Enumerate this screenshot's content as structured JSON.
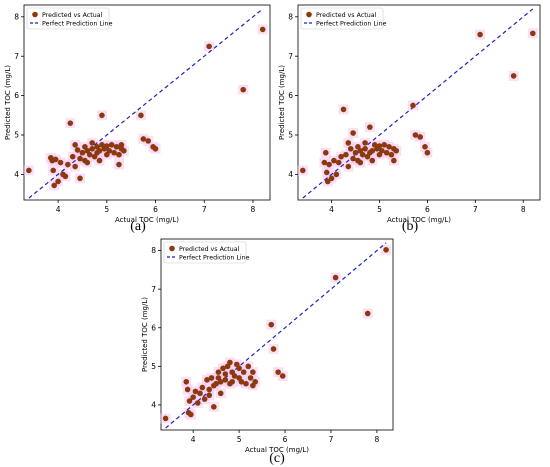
{
  "chart_data": [
    {
      "panel": "(a)",
      "type": "scatter",
      "xlabel": "Actual TOC (mg/L)",
      "ylabel": "Predicted TOC (mg/L)",
      "xlim": [
        3.3,
        8.35
      ],
      "ylim": [
        3.35,
        8.3
      ],
      "xticks": [
        4,
        5,
        6,
        7,
        8
      ],
      "yticks": [
        4,
        5,
        6,
        7,
        8
      ],
      "grid": false,
      "legend_position": "top-left",
      "series": [
        {
          "name": "Predicted vs Actual",
          "marker": "circle",
          "color": "#8b3a0e",
          "points": [
            [
              3.4,
              4.1
            ],
            [
              3.85,
              4.42
            ],
            [
              3.88,
              4.35
            ],
            [
              3.9,
              4.1
            ],
            [
              3.92,
              3.72
            ],
            [
              3.95,
              4.38
            ],
            [
              4.0,
              3.82
            ],
            [
              4.05,
              4.3
            ],
            [
              4.1,
              4.0
            ],
            [
              4.15,
              3.95
            ],
            [
              4.2,
              4.25
            ],
            [
              4.25,
              5.3
            ],
            [
              4.3,
              4.45
            ],
            [
              4.35,
              4.2
            ],
            [
              4.35,
              4.75
            ],
            [
              4.4,
              4.62
            ],
            [
              4.45,
              3.9
            ],
            [
              4.45,
              4.4
            ],
            [
              4.5,
              4.55
            ],
            [
              4.55,
              4.35
            ],
            [
              4.55,
              4.7
            ],
            [
              4.6,
              4.6
            ],
            [
              4.6,
              4.3
            ],
            [
              4.65,
              4.5
            ],
            [
              4.7,
              4.65
            ],
            [
              4.7,
              4.8
            ],
            [
              4.75,
              4.45
            ],
            [
              4.8,
              4.55
            ],
            [
              4.8,
              4.7
            ],
            [
              4.85,
              4.6
            ],
            [
              4.85,
              4.35
            ],
            [
              4.9,
              4.75
            ],
            [
              4.9,
              5.5
            ],
            [
              4.95,
              4.65
            ],
            [
              5.0,
              4.5
            ],
            [
              5.0,
              4.72
            ],
            [
              5.05,
              4.6
            ],
            [
              5.1,
              4.75
            ],
            [
              5.15,
              4.55
            ],
            [
              5.2,
              4.7
            ],
            [
              5.25,
              4.5
            ],
            [
              5.25,
              4.25
            ],
            [
              5.3,
              4.65
            ],
            [
              5.3,
              4.75
            ],
            [
              5.35,
              4.6
            ],
            [
              5.7,
              5.5
            ],
            [
              5.75,
              4.9
            ],
            [
              5.85,
              4.85
            ],
            [
              5.95,
              4.7
            ],
            [
              6.0,
              4.65
            ],
            [
              7.1,
              7.25
            ],
            [
              7.8,
              6.15
            ],
            [
              8.2,
              7.68
            ]
          ]
        },
        {
          "name": "Perfect Prediction Line",
          "style": "dashed",
          "color": "#1f1fbf",
          "points": [
            [
              3.4,
              3.4
            ],
            [
              8.2,
              8.2
            ]
          ]
        }
      ]
    },
    {
      "panel": "(b)",
      "type": "scatter",
      "xlabel": "Actual TOC (mg/L)",
      "ylabel": "Predicted TOC (mg/L)",
      "xlim": [
        3.3,
        8.35
      ],
      "ylim": [
        3.35,
        8.3
      ],
      "xticks": [
        4,
        5,
        6,
        7,
        8
      ],
      "yticks": [
        4,
        5,
        6,
        7,
        8
      ],
      "grid": false,
      "legend_position": "top-left",
      "series": [
        {
          "name": "Predicted vs Actual",
          "marker": "circle",
          "color": "#8b3a0e",
          "points": [
            [
              3.4,
              4.1
            ],
            [
              3.85,
              4.3
            ],
            [
              3.88,
              4.55
            ],
            [
              3.9,
              4.05
            ],
            [
              3.92,
              3.82
            ],
            [
              3.95,
              4.25
            ],
            [
              4.0,
              3.9
            ],
            [
              4.05,
              4.35
            ],
            [
              4.1,
              4.0
            ],
            [
              4.15,
              4.3
            ],
            [
              4.2,
              4.45
            ],
            [
              4.25,
              5.65
            ],
            [
              4.3,
              4.5
            ],
            [
              4.35,
              4.2
            ],
            [
              4.35,
              4.8
            ],
            [
              4.4,
              4.65
            ],
            [
              4.45,
              5.05
            ],
            [
              4.45,
              4.4
            ],
            [
              4.5,
              4.55
            ],
            [
              4.55,
              4.35
            ],
            [
              4.55,
              4.7
            ],
            [
              4.6,
              4.6
            ],
            [
              4.6,
              4.3
            ],
            [
              4.65,
              4.5
            ],
            [
              4.7,
              4.65
            ],
            [
              4.7,
              4.8
            ],
            [
              4.75,
              4.45
            ],
            [
              4.8,
              4.55
            ],
            [
              4.8,
              5.2
            ],
            [
              4.85,
              4.6
            ],
            [
              4.85,
              4.35
            ],
            [
              4.9,
              4.75
            ],
            [
              4.95,
              4.65
            ],
            [
              5.0,
              4.5
            ],
            [
              5.0,
              4.72
            ],
            [
              5.05,
              4.6
            ],
            [
              5.1,
              4.75
            ],
            [
              5.15,
              4.55
            ],
            [
              5.2,
              4.7
            ],
            [
              5.25,
              4.5
            ],
            [
              5.3,
              4.65
            ],
            [
              5.3,
              4.35
            ],
            [
              5.35,
              4.6
            ],
            [
              5.7,
              5.75
            ],
            [
              5.75,
              5.0
            ],
            [
              5.85,
              4.95
            ],
            [
              5.95,
              4.7
            ],
            [
              6.0,
              4.55
            ],
            [
              7.1,
              7.55
            ],
            [
              7.8,
              6.5
            ],
            [
              8.2,
              7.58
            ]
          ]
        },
        {
          "name": "Perfect Prediction Line",
          "style": "dashed",
          "color": "#1f1fbf",
          "points": [
            [
              3.4,
              3.4
            ],
            [
              8.2,
              8.2
            ]
          ]
        }
      ]
    },
    {
      "panel": "(c)",
      "type": "scatter",
      "xlabel": "Actual TOC (mg/L)",
      "ylabel": "Predicted TOC (mg/L)",
      "xlim": [
        3.3,
        8.35
      ],
      "ylim": [
        3.35,
        8.3
      ],
      "xticks": [
        4,
        5,
        6,
        7,
        8
      ],
      "yticks": [
        4,
        5,
        6,
        7,
        8
      ],
      "grid": false,
      "legend_position": "top-left",
      "series": [
        {
          "name": "Predicted vs Actual",
          "marker": "circle",
          "color": "#8b3a0e",
          "points": [
            [
              3.4,
              3.65
            ],
            [
              3.85,
              4.6
            ],
            [
              3.88,
              4.4
            ],
            [
              3.9,
              3.8
            ],
            [
              3.92,
              4.1
            ],
            [
              3.95,
              3.75
            ],
            [
              4.0,
              4.2
            ],
            [
              4.05,
              4.35
            ],
            [
              4.1,
              4.05
            ],
            [
              4.15,
              4.3
            ],
            [
              4.2,
              4.45
            ],
            [
              4.25,
              4.15
            ],
            [
              4.3,
              4.65
            ],
            [
              4.35,
              4.4
            ],
            [
              4.35,
              4.25
            ],
            [
              4.4,
              4.7
            ],
            [
              4.45,
              3.95
            ],
            [
              4.45,
              4.5
            ],
            [
              4.5,
              4.55
            ],
            [
              4.55,
              4.85
            ],
            [
              4.55,
              4.7
            ],
            [
              4.6,
              4.6
            ],
            [
              4.6,
              4.3
            ],
            [
              4.65,
              4.95
            ],
            [
              4.7,
              4.65
            ],
            [
              4.7,
              4.8
            ],
            [
              4.75,
              5.0
            ],
            [
              4.8,
              4.55
            ],
            [
              4.8,
              5.1
            ],
            [
              4.85,
              4.6
            ],
            [
              4.85,
              4.85
            ],
            [
              4.9,
              4.75
            ],
            [
              4.95,
              5.05
            ],
            [
              5.0,
              4.7
            ],
            [
              5.0,
              4.95
            ],
            [
              5.05,
              4.6
            ],
            [
              5.1,
              4.85
            ],
            [
              5.15,
              4.55
            ],
            [
              5.2,
              5.0
            ],
            [
              5.25,
              4.7
            ],
            [
              5.3,
              4.85
            ],
            [
              5.3,
              4.5
            ],
            [
              5.35,
              4.6
            ],
            [
              5.7,
              6.08
            ],
            [
              5.75,
              5.45
            ],
            [
              5.85,
              4.85
            ],
            [
              5.95,
              4.75
            ],
            [
              7.1,
              7.3
            ],
            [
              7.8,
              6.37
            ],
            [
              8.2,
              8.02
            ]
          ]
        },
        {
          "name": "Perfect Prediction Line",
          "style": "dashed",
          "color": "#1f1fbf",
          "points": [
            [
              3.4,
              3.4
            ],
            [
              8.2,
              8.2
            ]
          ]
        }
      ]
    }
  ],
  "colors": {
    "marker": "#8b3a0e",
    "line": "#1f1fbf",
    "highlight": "#f5c6f0"
  }
}
